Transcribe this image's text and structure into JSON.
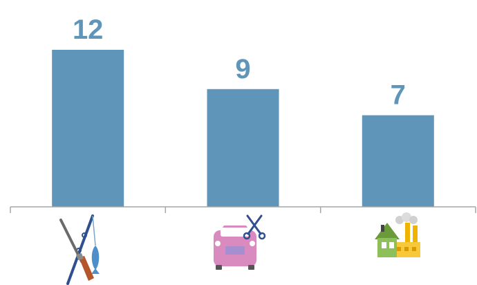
{
  "chart_data": {
    "type": "bar",
    "categories": [
      "hunting-fishing-icon",
      "car-repair-icon",
      "factory-icon"
    ],
    "values": [
      12,
      9,
      7
    ],
    "data_labels": [
      "12",
      "9",
      "7"
    ],
    "ylim": [
      0,
      12
    ],
    "grid": false,
    "legend": "none",
    "title": "",
    "xlabel": "",
    "ylabel": ""
  },
  "colors": {
    "bar": "#5e95b8",
    "label": "#5e95b8",
    "axis": "#a6a6a6"
  }
}
